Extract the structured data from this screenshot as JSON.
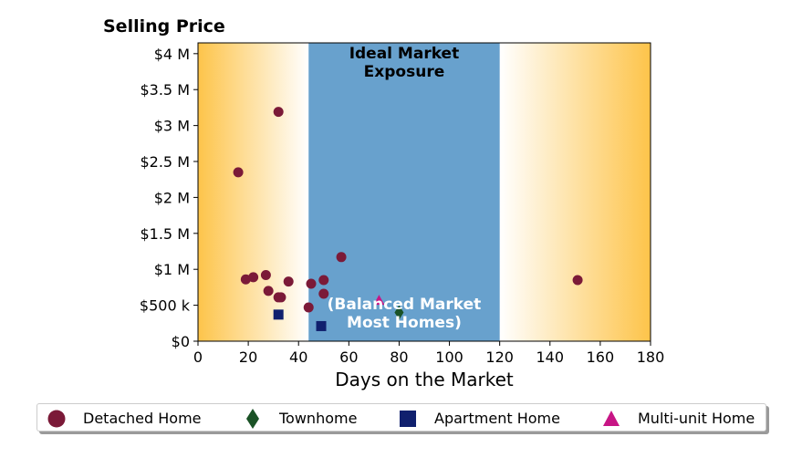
{
  "chart_data": {
    "type": "scatter",
    "title": "Selling Price",
    "xlabel": "Days on the Market",
    "ylabel": "",
    "xlim": [
      0,
      180
    ],
    "ylim": [
      0,
      4150000
    ],
    "x_ticks": [
      0,
      20,
      40,
      60,
      80,
      100,
      120,
      140,
      160,
      180
    ],
    "x_tick_labels": [
      "0",
      "20",
      "40",
      "60",
      "80",
      "100",
      "120",
      "140",
      "160",
      "180"
    ],
    "y_ticks": [
      0,
      500000,
      1000000,
      1500000,
      2000000,
      2500000,
      3000000,
      3500000,
      4000000
    ],
    "y_tick_labels": [
      "$0",
      "$500 k",
      "$1 M",
      "$1.5 M",
      "$2 M",
      "$2.5 M",
      "$3 M",
      "$3.5 M",
      "$4 M"
    ],
    "band": {
      "x_range": [
        44,
        120
      ],
      "color": "#68a1cd"
    },
    "band_label_top": [
      "Ideal Market",
      "Exposure"
    ],
    "band_label_bottom": [
      "(Balanced Market",
      "Most Homes)"
    ],
    "background_gradient_color": "#fdc44a",
    "legend_position": "bottom",
    "series": [
      {
        "name": "Detached Home",
        "marker": "circle",
        "color": "#7b1a38",
        "points": [
          [
            16,
            2350000
          ],
          [
            32,
            3190000
          ],
          [
            19,
            860000
          ],
          [
            22,
            890000
          ],
          [
            27,
            920000
          ],
          [
            28,
            700000
          ],
          [
            32,
            610000
          ],
          [
            33,
            610000
          ],
          [
            36,
            830000
          ],
          [
            44,
            470000
          ],
          [
            45,
            800000
          ],
          [
            50,
            850000
          ],
          [
            50,
            660000
          ],
          [
            57,
            1170000
          ],
          [
            151,
            850000
          ]
        ]
      },
      {
        "name": "Townhome",
        "marker": "diamond",
        "color": "#1a5226",
        "points": [
          [
            80,
            400000
          ]
        ]
      },
      {
        "name": "Apartment Home",
        "marker": "square",
        "color": "#10206e",
        "points": [
          [
            32,
            370000
          ],
          [
            49,
            210000
          ]
        ]
      },
      {
        "name": "Multi-unit Home",
        "marker": "triangle",
        "color": "#c71585",
        "points": [
          [
            72,
            570000
          ]
        ]
      }
    ]
  }
}
